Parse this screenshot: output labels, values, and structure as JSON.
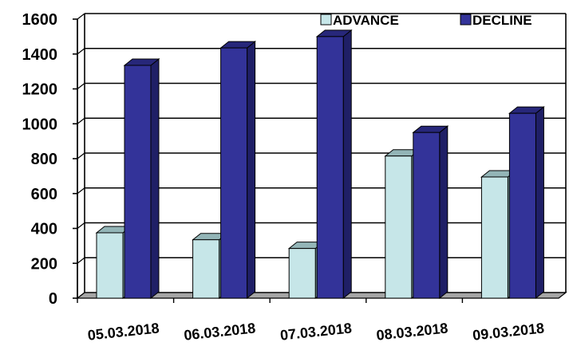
{
  "chart_data": {
    "type": "bar",
    "title": "",
    "xlabel": "",
    "ylabel": "",
    "categories": [
      "05.03.2018",
      "06.03.2018",
      "07.03.2018",
      "08.03.2018",
      "09.03.2018"
    ],
    "series": [
      {
        "name": "ADVANCE",
        "values": [
          375,
          335,
          285,
          815,
          695
        ],
        "color": "#c6e6e8"
      },
      {
        "name": "DECLINE",
        "values": [
          1335,
          1435,
          1500,
          950,
          1060
        ],
        "color": "#333399"
      }
    ],
    "ylim": [
      0,
      1600
    ],
    "yticks": [
      0,
      200,
      400,
      600,
      800,
      1000,
      1200,
      1400,
      1600
    ],
    "grid": true,
    "legend_position": "top-right",
    "style": "3d-clustered-column"
  }
}
